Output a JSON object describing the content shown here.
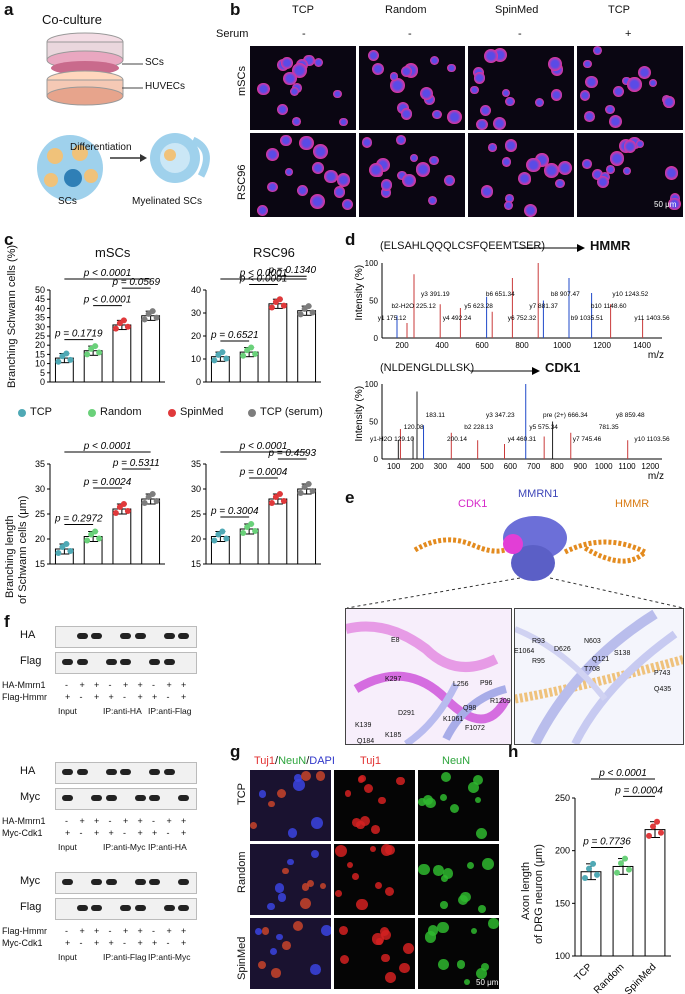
{
  "panels": {
    "a": "a",
    "b": "b",
    "c": "c",
    "d": "d",
    "e": "e",
    "f": "f",
    "g": "g",
    "h": "h"
  },
  "a": {
    "title": "Co-culture",
    "top": "SCs",
    "bottom": "HUVECs",
    "diff": "Differentiation",
    "left": "SCs",
    "right": "Myelinated SCs"
  },
  "b": {
    "cols": [
      "TCP",
      "Random",
      "SpinMed",
      "TCP"
    ],
    "serum_label": "Serum",
    "serum": [
      "-",
      "-",
      "-",
      "+"
    ],
    "rows": [
      "mSCs",
      "RSC96"
    ],
    "scale": "50 μm"
  },
  "c": {
    "titles": [
      "mSCs",
      "RSC96"
    ],
    "ylabel_top": "Branching Schwann cells (%)",
    "ylabel_bottom_1": "Branching length",
    "ylabel_bottom_2": "of Schwann cells (μm)",
    "legend": [
      "TCP",
      "Random",
      "SpinMed",
      "TCP (serum)"
    ],
    "legend_colors": [
      "#4fa9b5",
      "#6ad17a",
      "#e0393b",
      "#7d7d7d"
    ]
  },
  "chart_data": [
    {
      "type": "bar",
      "title": "mSCs",
      "ylabel": "Branching Schwann cells (%)",
      "categories": [
        "TCP",
        "Random",
        "SpinMed",
        "TCP (serum)"
      ],
      "values": [
        13,
        17,
        31,
        36
      ],
      "ylim": [
        0,
        50
      ],
      "yticks": [
        0,
        5,
        10,
        15,
        20,
        25,
        30,
        35,
        40,
        45,
        50
      ],
      "stats": [
        {
          "label": "p = 0.1719",
          "from": 0,
          "to": 1
        },
        {
          "label": "p < 0.0001",
          "from": 1,
          "to": 2
        },
        {
          "label": "p = 0.0569",
          "from": 2,
          "to": 3
        },
        {
          "label": "p < 0.0001",
          "from": 0,
          "to": 3
        }
      ]
    },
    {
      "type": "bar",
      "title": "RSC96",
      "ylabel": "Branching Schwann cells (%)",
      "categories": [
        "TCP",
        "Random",
        "SpinMed",
        "TCP (serum)"
      ],
      "values": [
        11,
        13,
        34,
        31
      ],
      "ylim": [
        0,
        40
      ],
      "yticks": [
        0,
        10,
        20,
        30,
        40
      ],
      "stats": [
        {
          "label": "p = 0.6521",
          "from": 0,
          "to": 1
        },
        {
          "label": "p < 0.0001",
          "from": 1,
          "to": 2
        },
        {
          "label": "p = 0.1340",
          "from": 2,
          "to": 3
        },
        {
          "label": "p < 0.0001",
          "from": 0,
          "to": 3
        }
      ]
    },
    {
      "type": "bar",
      "ylabel": "Branching length of Schwann cells (μm)",
      "categories": [
        "TCP",
        "Random",
        "SpinMed",
        "TCP (serum)"
      ],
      "values": [
        18,
        20.5,
        26,
        28
      ],
      "ylim": [
        15,
        35
      ],
      "yticks": [
        15,
        20,
        25,
        30,
        35
      ],
      "stats": [
        {
          "label": "p = 0.2972",
          "from": 0,
          "to": 1
        },
        {
          "label": "p = 0.0024",
          "from": 1,
          "to": 2
        },
        {
          "label": "p = 0.5311",
          "from": 2,
          "to": 3
        },
        {
          "label": "p < 0.0001",
          "from": 0,
          "to": 3
        }
      ]
    },
    {
      "type": "bar",
      "ylabel": "Branching length of Schwann cells (μm)",
      "categories": [
        "TCP",
        "Random",
        "SpinMed",
        "TCP (serum)"
      ],
      "values": [
        20.5,
        22,
        28,
        30
      ],
      "ylim": [
        15,
        35
      ],
      "yticks": [
        15,
        20,
        25,
        30,
        35
      ],
      "stats": [
        {
          "label": "p = 0.3004",
          "from": 0,
          "to": 1
        },
        {
          "label": "p = 0.0004",
          "from": 1,
          "to": 2
        },
        {
          "label": "p = 0.4593",
          "from": 2,
          "to": 3
        },
        {
          "label": "p < 0.0001",
          "from": 0,
          "to": 3
        }
      ]
    },
    {
      "type": "bar",
      "ylabel": "Axon length of DRG neuron (μm)",
      "categories": [
        "TCP",
        "Random",
        "SpinMed"
      ],
      "values": [
        180,
        185,
        220
      ],
      "ylim": [
        100,
        250
      ],
      "yticks": [
        100,
        150,
        200,
        250
      ],
      "stats": [
        {
          "label": "p = 0.7736",
          "from": 0,
          "to": 1
        },
        {
          "label": "p = 0.0004",
          "from": 1,
          "to": 2
        },
        {
          "label": "p < 0.0001",
          "from": 0,
          "to": 2
        }
      ]
    }
  ],
  "d": {
    "pep1": "(ELSAHLQQQLCSFQEEMTSER)",
    "prot1": "HMMR",
    "pep2": "(NLDENGLDLLSK)",
    "prot2": "CDK1",
    "ylabel": "Intensity (%)",
    "xlabel": "m/z",
    "x1": [
      "200",
      "400",
      "600",
      "800",
      "1000",
      "1200",
      "1400"
    ],
    "x2": [
      "100",
      "200",
      "300",
      "400",
      "500",
      "600",
      "700",
      "800",
      "900",
      "1000",
      "1100",
      "1200"
    ],
    "y": [
      "0",
      "50",
      "100"
    ],
    "peaks1": [
      "y1 175.12",
      "b2-H2O 225.12",
      "y3 391.19",
      "y4 492.24",
      "y5 623.28",
      "b6 651.34",
      "y6 752.32",
      "y7 881.37",
      "b8 907.47",
      "b9 1035.51",
      "b10 1148.60",
      "y10 1243.52",
      "y11 1403.56"
    ],
    "peaks2": [
      "y1-H2O 129.10",
      "120.08",
      "183.11",
      "200.14",
      "b2 228.13",
      "y3 347.23",
      "y4 460.31",
      "y5 575.34",
      "pre (2+) 666.34",
      "y7 745.46",
      "781.35",
      "y8 859.48",
      "y10 1103.56"
    ]
  },
  "e": {
    "cdk1": "CDK1",
    "mmrn1": "MMRN1",
    "hmmr": "HMMR",
    "left_res": [
      "E8",
      "K297",
      "L256",
      "P96",
      "D291",
      "R1209",
      "K139",
      "Q98",
      "K1061",
      "Q184",
      "K185",
      "F1072"
    ],
    "right_res": [
      "R93",
      "D626",
      "N603",
      "E1064",
      "R95",
      "Q121",
      "S138",
      "T708",
      "P743",
      "Q435"
    ]
  },
  "f": {
    "blot1": [
      "HA",
      "Flag"
    ],
    "row1": [
      "HA-Mmrn1",
      "Flag-Hmmr"
    ],
    "grp1": [
      "Input",
      "IP:anti-HA",
      "IP:anti-Flag"
    ],
    "blot2": [
      "HA",
      "Myc"
    ],
    "row2": [
      "HA-Mmrn1",
      "Myc-Cdk1"
    ],
    "grp2": [
      "Input",
      "IP:anti-Myc",
      "IP:anti-HA"
    ],
    "blot3": [
      "Myc",
      "Flag"
    ],
    "row3": [
      "Flag-Hmmr",
      "Myc-Cdk1"
    ],
    "grp3": [
      "Input",
      "IP:anti-Flag",
      "IP:anti-Myc"
    ],
    "plus": "+",
    "minus": "-"
  },
  "g": {
    "merge_parts": [
      "Tuj1",
      "/",
      "NeuN",
      "/",
      "DAPI"
    ],
    "tuj1": "Tuj1",
    "neun": "NeuN",
    "rows": [
      "TCP",
      "Random",
      "SpinMed"
    ],
    "scale": "50 μm"
  },
  "h": {
    "ylabel_1": "Axon length",
    "ylabel_2": "of DRG neuron (μm)",
    "cats": [
      "TCP",
      "Random",
      "SpinMed"
    ]
  }
}
